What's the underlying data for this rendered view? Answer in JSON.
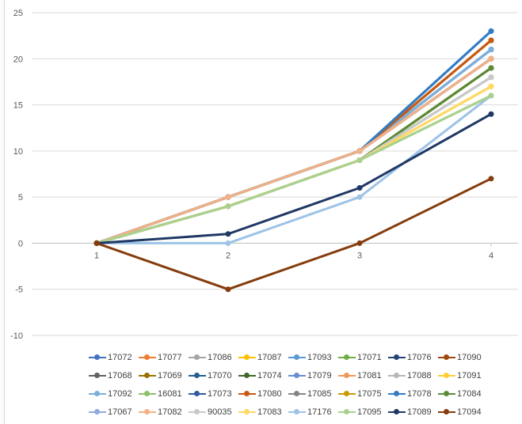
{
  "chart_data": {
    "type": "line",
    "title": "",
    "xlabel": "",
    "ylabel": "",
    "categories": [
      "1",
      "2",
      "3",
      "4"
    ],
    "ylim": [
      -10,
      25
    ],
    "yticks": [
      -10,
      -5,
      0,
      5,
      10,
      15,
      20,
      25
    ],
    "grid": true,
    "legend_position": "bottom",
    "series": [
      {
        "name": "17072",
        "color": "#4472c4",
        "values": [
          0,
          5,
          10,
          23
        ]
      },
      {
        "name": "17077",
        "color": "#ed7d31",
        "values": [
          0,
          5,
          10,
          22
        ]
      },
      {
        "name": "17086",
        "color": "#a5a5a5",
        "values": [
          0,
          5,
          10,
          20
        ]
      },
      {
        "name": "17087",
        "color": "#ffc000",
        "values": [
          0,
          4,
          9,
          17
        ]
      },
      {
        "name": "17093",
        "color": "#5b9bd5",
        "values": [
          0,
          5,
          10,
          23
        ]
      },
      {
        "name": "17071",
        "color": "#70ad47",
        "values": [
          0,
          4,
          9,
          19
        ]
      },
      {
        "name": "17076",
        "color": "#264478",
        "values": [
          0,
          5,
          10,
          21
        ]
      },
      {
        "name": "17090",
        "color": "#9e480e",
        "values": [
          0,
          5,
          10,
          22
        ]
      },
      {
        "name": "17068",
        "color": "#636363",
        "values": [
          0,
          5,
          10,
          20
        ]
      },
      {
        "name": "17069",
        "color": "#997300",
        "values": [
          0,
          4,
          9,
          19
        ]
      },
      {
        "name": "17070",
        "color": "#255e91",
        "values": [
          0,
          5,
          10,
          21
        ]
      },
      {
        "name": "17074",
        "color": "#43682b",
        "values": [
          0,
          4,
          9,
          19
        ]
      },
      {
        "name": "17079",
        "color": "#698ed0",
        "values": [
          0,
          5,
          10,
          21
        ]
      },
      {
        "name": "17081",
        "color": "#f1975a",
        "values": [
          0,
          5,
          10,
          20
        ]
      },
      {
        "name": "17088",
        "color": "#b7b7b7",
        "values": [
          0,
          4,
          9,
          18
        ]
      },
      {
        "name": "17091",
        "color": "#ffcd33",
        "values": [
          0,
          4,
          9,
          17
        ]
      },
      {
        "name": "17092",
        "color": "#7cafdd",
        "values": [
          0,
          5,
          10,
          21
        ]
      },
      {
        "name": "16081",
        "color": "#8cc168",
        "values": [
          0,
          4,
          9,
          16
        ]
      },
      {
        "name": "17073",
        "color": "#335aa1",
        "values": [
          0,
          5,
          10,
          20
        ]
      },
      {
        "name": "17080",
        "color": "#c55a11",
        "values": [
          0,
          5,
          10,
          22
        ]
      },
      {
        "name": "17085",
        "color": "#848484",
        "values": [
          0,
          5,
          10,
          20
        ]
      },
      {
        "name": "17075",
        "color": "#cc9a00",
        "values": [
          0,
          4,
          9,
          19
        ]
      },
      {
        "name": "17078",
        "color": "#327dc2",
        "values": [
          0,
          5,
          10,
          23
        ]
      },
      {
        "name": "17084",
        "color": "#5a8b39",
        "values": [
          0,
          4,
          9,
          19
        ]
      },
      {
        "name": "17067",
        "color": "#8faadc",
        "values": [
          0,
          4,
          9,
          18
        ]
      },
      {
        "name": "17082",
        "color": "#f4b183",
        "values": [
          0,
          5,
          10,
          20
        ]
      },
      {
        "name": "90035",
        "color": "#c9c9c9",
        "values": [
          0,
          4,
          9,
          18
        ]
      },
      {
        "name": "17083",
        "color": "#ffd966",
        "values": [
          0,
          4,
          9,
          17
        ]
      },
      {
        "name": "17176",
        "color": "#9dc3e6",
        "values": [
          0,
          0,
          5,
          16
        ]
      },
      {
        "name": "17095",
        "color": "#a9d18e",
        "values": [
          0,
          4,
          9,
          16
        ]
      },
      {
        "name": "17089",
        "color": "#203864",
        "values": [
          0,
          1,
          6,
          14
        ]
      },
      {
        "name": "17094",
        "color": "#843c0c",
        "values": [
          0,
          -5,
          0,
          7
        ]
      }
    ]
  }
}
